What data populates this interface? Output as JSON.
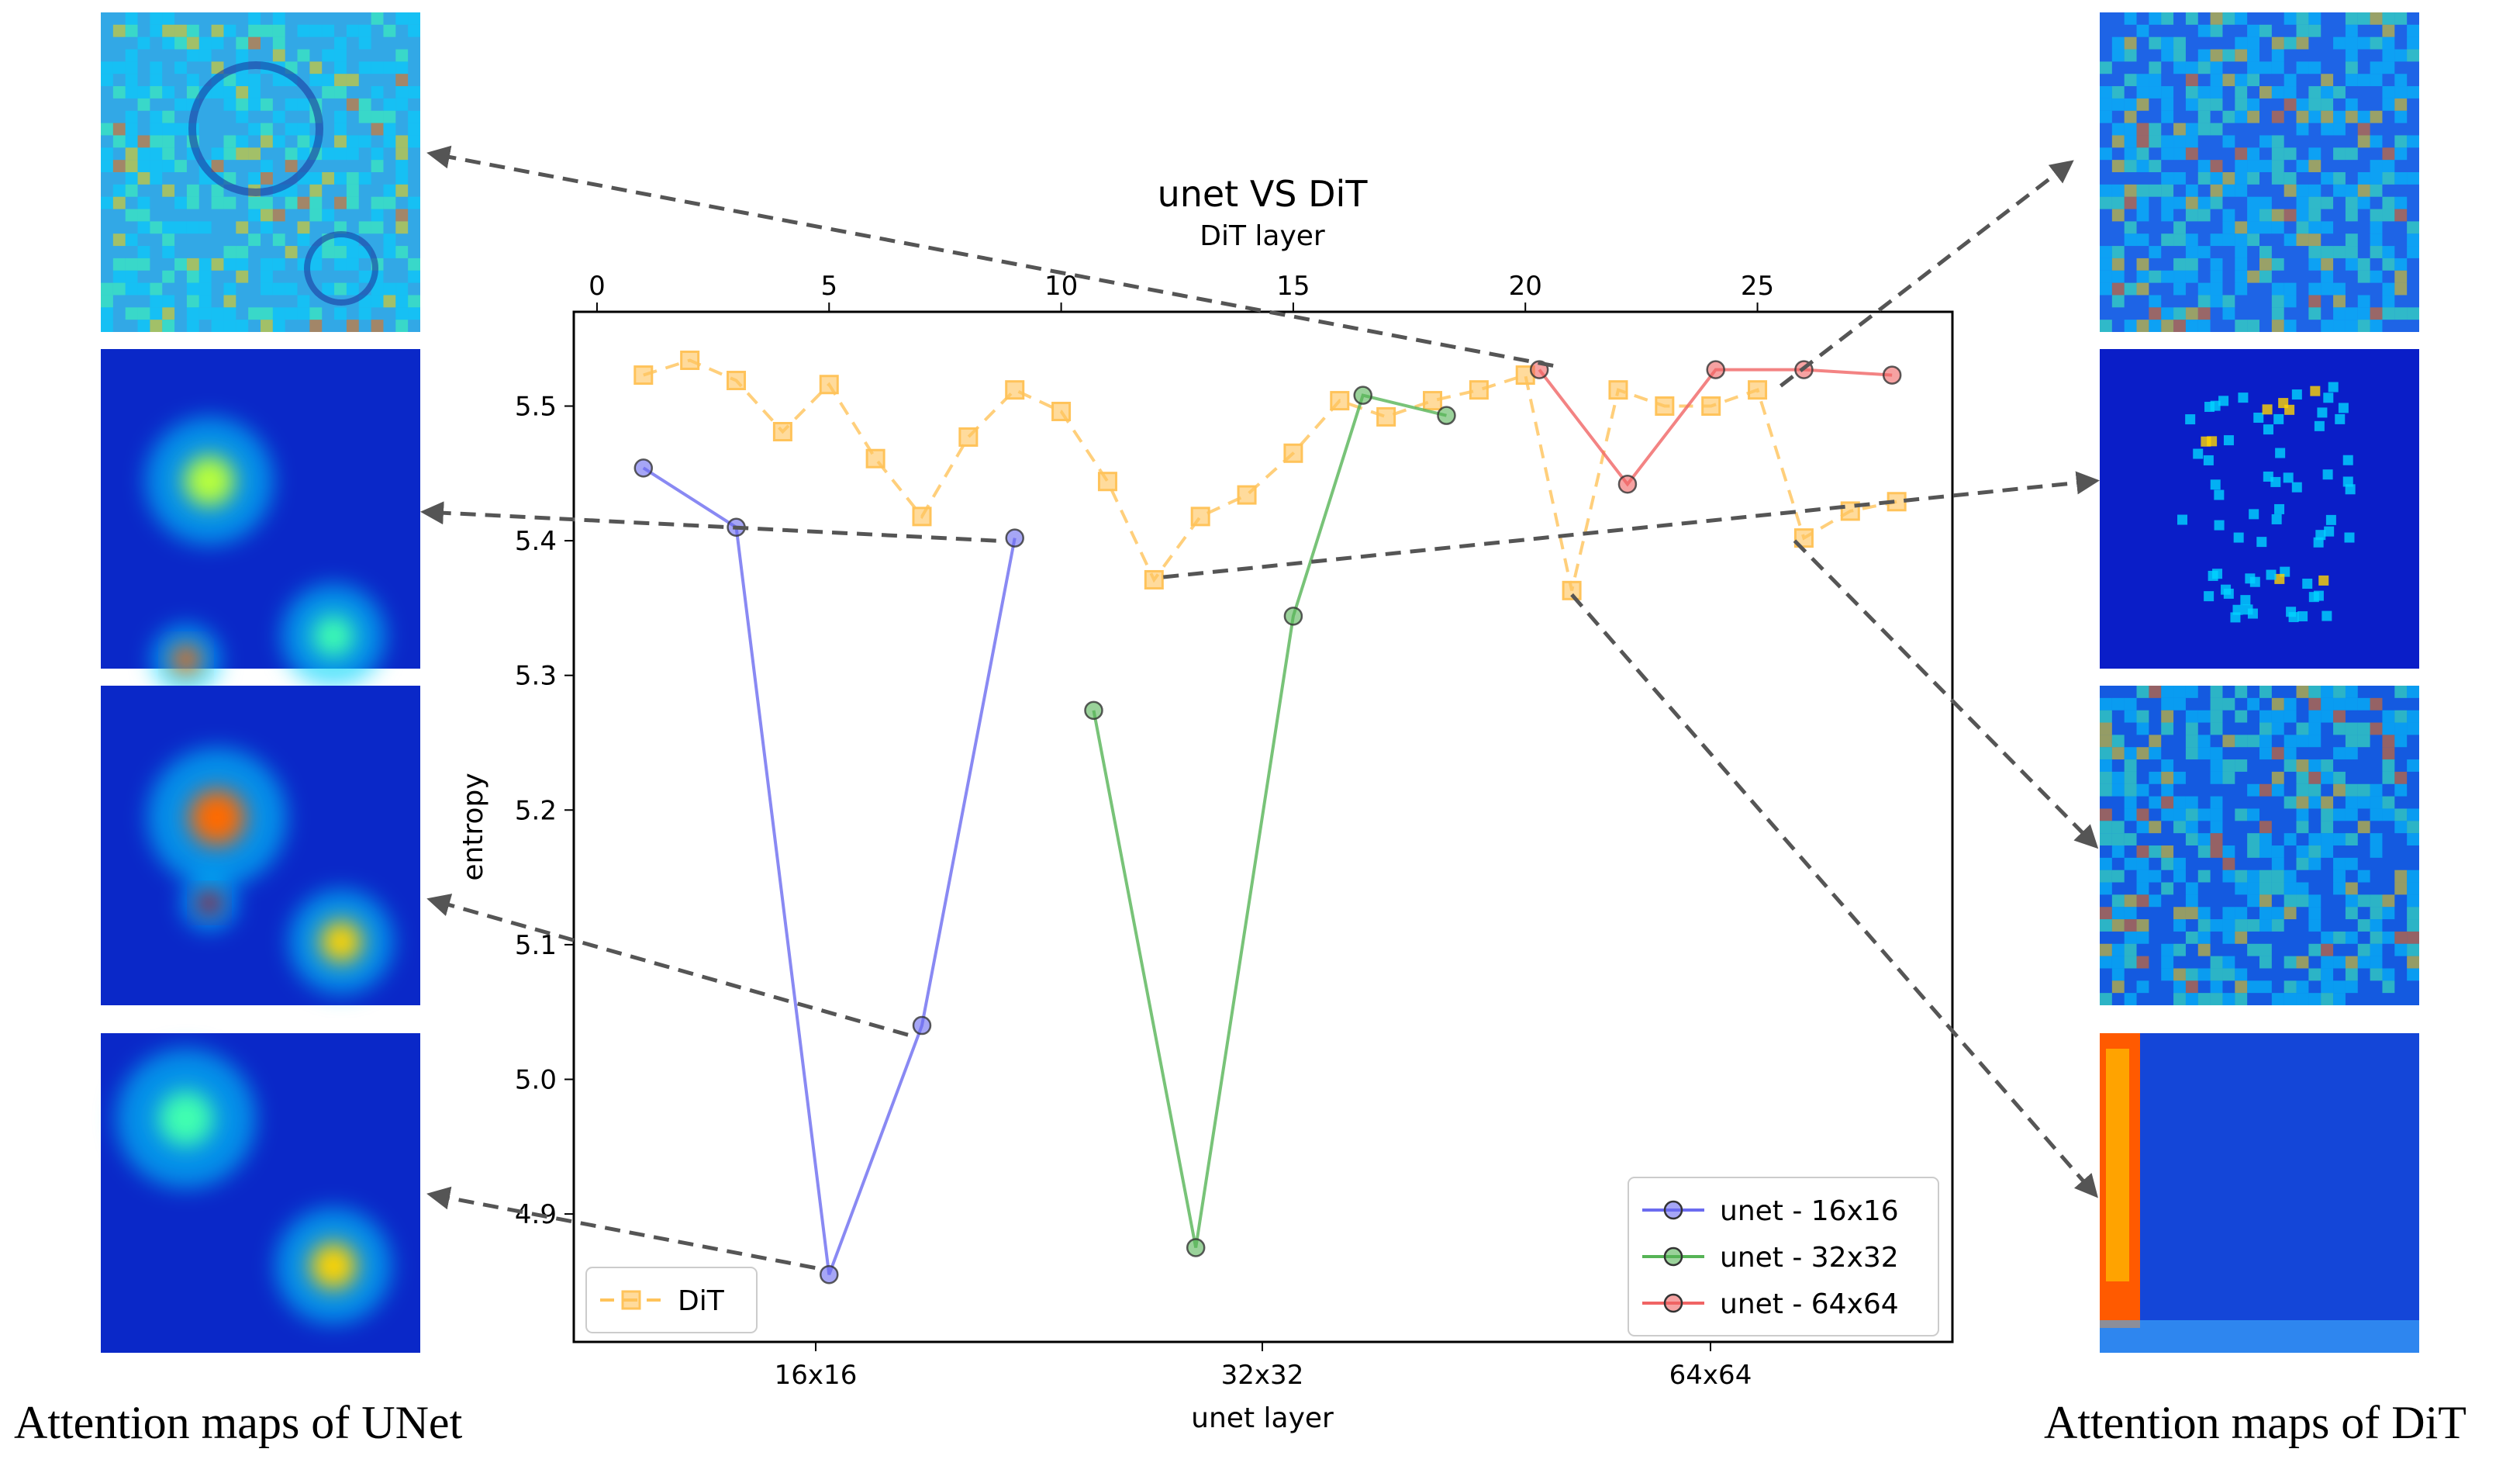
{
  "captions": {
    "left": "Attention maps of UNet",
    "right": "Attention maps of DiT"
  },
  "chart_data": {
    "type": "line",
    "title": "unet VS DiT",
    "top_xlabel": "DiT layer",
    "xlabel": "unet layer",
    "ylabel": "entropy",
    "top_axis": {
      "range": [
        -0.5,
        29.2
      ],
      "ticks": [
        0,
        5,
        10,
        15,
        20,
        25
      ]
    },
    "bottom_axis": {
      "categories": [
        "16x16",
        "32x32",
        "64x64"
      ]
    },
    "y_axis": {
      "range": [
        4.805,
        5.57
      ],
      "ticks": [
        4.9,
        5.0,
        5.1,
        5.2,
        5.3,
        5.4,
        5.5
      ]
    },
    "grid": false,
    "legends": {
      "dit_position": "lower-left",
      "unet_position": "lower-right"
    },
    "series": [
      {
        "name": "DiT",
        "color": "#ffc35a",
        "style": "dashed",
        "marker": "square",
        "x": [
          1,
          2,
          3,
          4,
          5,
          6,
          7,
          8,
          9,
          10,
          11,
          12,
          13,
          14,
          15,
          16,
          17,
          18,
          19,
          20,
          21,
          22,
          23,
          24,
          25,
          26,
          27,
          28
        ],
        "values": [
          5.523,
          5.534,
          5.519,
          5.481,
          5.516,
          5.461,
          5.418,
          5.477,
          5.512,
          5.496,
          5.444,
          5.371,
          5.418,
          5.434,
          5.465,
          5.504,
          5.492,
          5.504,
          5.512,
          5.523,
          5.363,
          5.512,
          5.5,
          5.5,
          5.512,
          5.402,
          5.422,
          5.429
        ]
      },
      {
        "name": "unet - 16x16",
        "color": "#6b6bf0",
        "style": "solid",
        "marker": "circle",
        "x": [
          1,
          3,
          5,
          7,
          9
        ],
        "values": [
          5.454,
          5.41,
          4.855,
          5.04,
          5.402
        ]
      },
      {
        "name": "unet - 32x32",
        "color": "#56b456",
        "style": "solid",
        "marker": "circle",
        "x": [
          10.7,
          12.9,
          15.0,
          16.5,
          18.3
        ],
        "values": [
          5.274,
          4.875,
          5.344,
          5.508,
          5.493
        ]
      },
      {
        "name": "unet - 64x64",
        "color": "#f06464",
        "style": "solid",
        "marker": "circle",
        "x": [
          20.3,
          22.2,
          24.1,
          26.0,
          27.9
        ],
        "values": [
          5.527,
          5.442,
          5.527,
          5.527,
          5.523
        ]
      }
    ]
  },
  "thumbnails": {
    "left": [
      {
        "name": "unet-attention-map-1",
        "kind": "rings",
        "base": "#32a8e6"
      },
      {
        "name": "unet-attention-map-2",
        "kind": "blobs",
        "base": "#0a28c8"
      },
      {
        "name": "unet-attention-map-3",
        "kind": "blobs",
        "base": "#0a28c8"
      },
      {
        "name": "unet-attention-map-4",
        "kind": "blobs",
        "base": "#0a28c8"
      }
    ],
    "right": [
      {
        "name": "dit-attention-map-1",
        "kind": "noise",
        "base": "#1e64e6"
      },
      {
        "name": "dit-attention-map-2",
        "kind": "dots",
        "base": "#0a1ec8"
      },
      {
        "name": "dit-attention-map-3",
        "kind": "noise",
        "base": "#145ae0"
      },
      {
        "name": "dit-attention-map-4",
        "kind": "strip",
        "base": "#1446d8"
      }
    ]
  }
}
